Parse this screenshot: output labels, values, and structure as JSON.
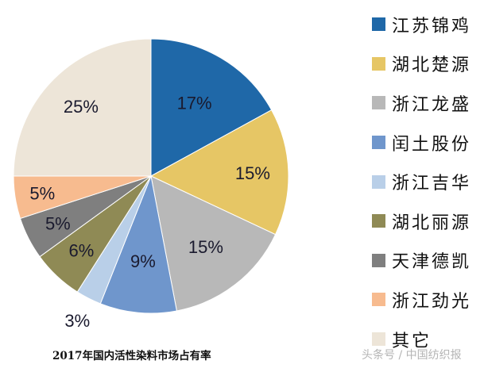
{
  "chart_data": {
    "type": "pie",
    "title": "2017年国内活性染料市场占有率",
    "start_angle": "top (12 o'clock)",
    "direction": "clockwise",
    "categories": [
      "江苏锦鸡",
      "湖北楚源",
      "浙江龙盛",
      "闰土股份",
      "浙江吉华",
      "湖北丽源",
      "天津德凯",
      "浙江劲光",
      "其它"
    ],
    "values": [
      17,
      15,
      15,
      9,
      3,
      6,
      5,
      5,
      25
    ],
    "labels": [
      "17%",
      "15%",
      "15%",
      "9%",
      "3%",
      "6%",
      "5%",
      "5%",
      "25%"
    ],
    "colors": [
      "#1f68a8",
      "#e6c665",
      "#b8b8b8",
      "#6f96cc",
      "#b9cfe8",
      "#8f8a55",
      "#7f7f7f",
      "#f7bb8f",
      "#ede5d8"
    ],
    "unit": "%",
    "legend_position": "right"
  },
  "legend": {
    "items": [
      {
        "label": "江苏锦鸡",
        "color": "#1f68a8"
      },
      {
        "label": "湖北楚源",
        "color": "#e6c665"
      },
      {
        "label": "浙江龙盛",
        "color": "#b8b8b8"
      },
      {
        "label": "闰土股份",
        "color": "#6f96cc"
      },
      {
        "label": "浙江吉华",
        "color": "#b9cfe8"
      },
      {
        "label": "湖北丽源",
        "color": "#8f8a55"
      },
      {
        "label": "天津德凯",
        "color": "#7f7f7f"
      },
      {
        "label": "浙江劲光",
        "color": "#f7bb8f"
      },
      {
        "label": "其它",
        "color": "#ede5d8"
      }
    ]
  },
  "caption": {
    "title": "2017年国内活性染料市场占有率",
    "watermark": "头条号 / 中国纺织报"
  }
}
